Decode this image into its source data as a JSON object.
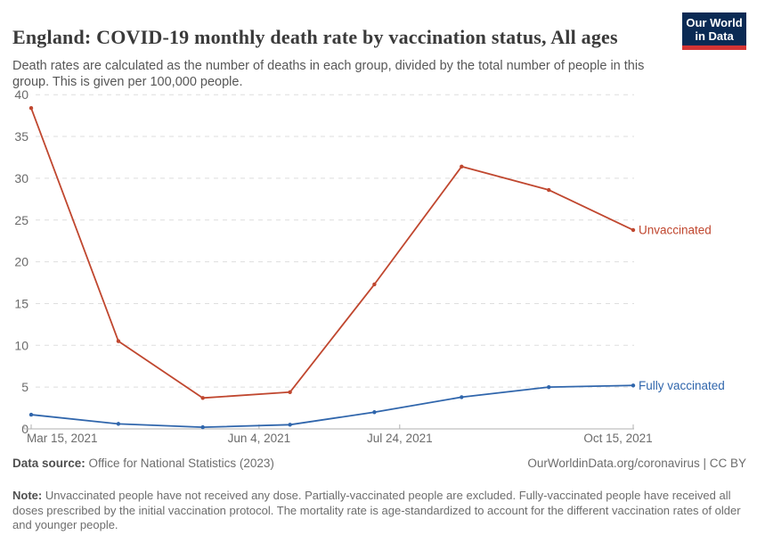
{
  "header": {
    "title": "England: COVID-19 monthly death rate by vaccination status, All ages",
    "subtitle": "Death rates are calculated as the number of deaths in each group, divided by the total number of people in this group. This is given per 100,000 people.",
    "logo": {
      "line1": "Our World",
      "line2": "in Data",
      "bg_color": "#0a2a54",
      "stripe_color": "#d43434"
    }
  },
  "chart_data": {
    "type": "line",
    "title": "England: COVID-19 monthly death rate by vaccination status, All ages",
    "ylabel": "",
    "xlabel": "",
    "ylim": [
      0,
      40
    ],
    "grid": "horizontal-dashed",
    "legend_position": "line-end-labels",
    "x_months": [
      "Mar 2021",
      "Apr 2021",
      "May 2021",
      "Jun 2021",
      "Jul 2021",
      "Aug 2021",
      "Sep 2021",
      "Oct 2021"
    ],
    "x_day_offsets": [
      0,
      31,
      61,
      92,
      122,
      153,
      184,
      214
    ],
    "x_ticks": [
      {
        "label": "Mar 15, 2021",
        "day": 0
      },
      {
        "label": "Jun 4, 2021",
        "day": 81
      },
      {
        "label": "Jul 24, 2021",
        "day": 131
      },
      {
        "label": "Oct 15, 2021",
        "day": 214
      }
    ],
    "y_ticks": [
      0,
      5,
      10,
      15,
      20,
      25,
      30,
      35,
      40
    ],
    "series": [
      {
        "name": "Unvaccinated",
        "color": "#c0472f",
        "values": [
          38.4,
          10.5,
          3.7,
          4.4,
          17.3,
          31.4,
          28.6,
          23.8
        ]
      },
      {
        "name": "Fully vaccinated",
        "color": "#3066ac",
        "values": [
          1.7,
          0.6,
          0.2,
          0.5,
          2.0,
          3.8,
          5.0,
          5.2
        ]
      }
    ],
    "axis_color": "#b0b0b0",
    "grid_color": "#dedede",
    "tick_label_color": "#6b6b6b"
  },
  "footer": {
    "data_source_label": "Data source:",
    "data_source": " Office for National Statistics (2023)",
    "credit": "OurWorldinData.org/coronavirus | CC BY",
    "note_label": "Note:",
    "note": " Unvaccinated people have not received any dose. Partially-vaccinated people are excluded. Fully-vaccinated people have received all doses prescribed by the initial vaccination protocol. The mortality rate is age-standardized to account for the different vaccination rates of older and younger people."
  }
}
